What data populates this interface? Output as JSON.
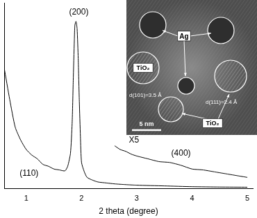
{
  "chart_data": {
    "type": "line",
    "x_label": "2 theta (degree)",
    "xlim": [
      0.6,
      5.1
    ],
    "xticks": [
      1,
      2,
      3,
      4,
      5
    ],
    "ylim": [
      0,
      100
    ],
    "tick_labels": "x",
    "grid": false,
    "series": [
      {
        "color": "#000000",
        "line_style": "solid",
        "x": [
          0.6,
          0.7,
          0.8,
          0.9,
          1.0,
          1.1,
          1.2,
          1.3,
          1.4,
          1.5,
          1.6,
          1.7,
          1.75,
          1.8,
          1.83,
          1.85,
          1.87,
          1.88,
          1.9,
          1.92,
          1.94,
          1.96,
          1.98,
          2.0,
          2.05,
          2.1,
          2.2,
          2.3,
          2.45,
          2.6,
          2.8,
          3.0,
          3.5,
          4.0,
          4.5,
          5.0
        ],
        "values": [
          65,
          48,
          33,
          26,
          21,
          18,
          16,
          13,
          12,
          10.5,
          10,
          9.5,
          12,
          19,
          35,
          58,
          80,
          88,
          90,
          86,
          70,
          47,
          28,
          14,
          9,
          6,
          4.5,
          3.5,
          3,
          2.5,
          2.1,
          1.8,
          1.4,
          1.0,
          0.8,
          0.7
        ]
      },
      {
        "color": "#000000",
        "line_style": "solid",
        "x": [
          2.6,
          2.7,
          2.8,
          2.9,
          3.0,
          3.2,
          3.4,
          3.6,
          3.8,
          4.0,
          4.2,
          4.4,
          4.6,
          4.8,
          5.0
        ],
        "values": [
          23,
          21,
          20,
          18.5,
          17.5,
          16,
          14.5,
          14,
          12.5,
          10.5,
          10,
          9,
          8,
          7,
          6
        ]
      }
    ],
    "annotations": [
      {
        "text": "(110)",
        "x": 1.05,
        "y": 8
      },
      {
        "text": "(200)",
        "x": 1.95,
        "y": 95
      },
      {
        "text": "X5",
        "x": 2.95,
        "y": 26
      },
      {
        "text": "(400)",
        "x": 3.8,
        "y": 19
      }
    ]
  },
  "inset": {
    "ag_label": "Ag",
    "tio2_labels": [
      "TiO₂",
      "TiO₂"
    ],
    "d_spacings": [
      "d(111)=2.4 Å",
      "d(101)=3.5 Å"
    ],
    "scale_bar": "5 nm"
  }
}
